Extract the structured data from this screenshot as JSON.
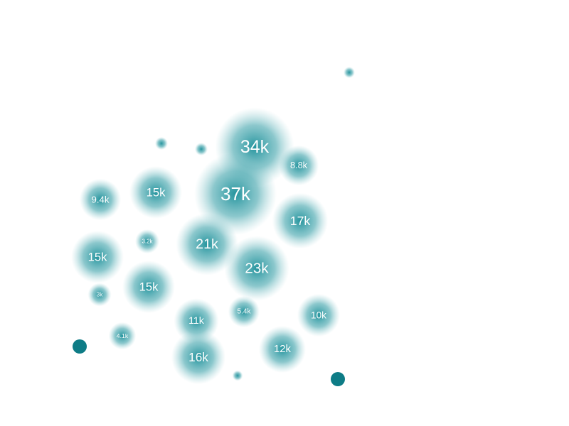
{
  "chart_data": {
    "type": "bubble",
    "title": "",
    "xlabel": "",
    "ylabel": "",
    "grid": false,
    "legend": "none",
    "colors": {
      "bubble": "#1a8f99",
      "solid": "#0e7c86",
      "label": "#ffffff"
    },
    "points": [
      {
        "label": "34k",
        "value": 34000
      },
      {
        "label": "37k",
        "value": 37000
      },
      {
        "label": "8.8k",
        "value": 8800
      },
      {
        "label": "9.4k",
        "value": 9400
      },
      {
        "label": "15k",
        "value": 15000
      },
      {
        "label": "17k",
        "value": 17000
      },
      {
        "label": "21k",
        "value": 21000
      },
      {
        "label": "3.2k",
        "value": 3200
      },
      {
        "label": "15k",
        "value": 15000
      },
      {
        "label": "23k",
        "value": 23000
      },
      {
        "label": "15k",
        "value": 15000
      },
      {
        "label": "3k",
        "value": 3000
      },
      {
        "label": "5.4k",
        "value": 5400
      },
      {
        "label": "10k",
        "value": 10000
      },
      {
        "label": "11k",
        "value": 11000
      },
      {
        "label": "4.1k",
        "value": 4100
      },
      {
        "label": "12k",
        "value": 12000
      },
      {
        "label": "16k",
        "value": 16000
      },
      {
        "label": "",
        "value": 700
      },
      {
        "label": "",
        "value": 900
      },
      {
        "label": "",
        "value": 900
      },
      {
        "label": "",
        "value": 600
      }
    ],
    "solid_points": [
      {
        "value": 1
      },
      {
        "value": 1
      }
    ]
  }
}
